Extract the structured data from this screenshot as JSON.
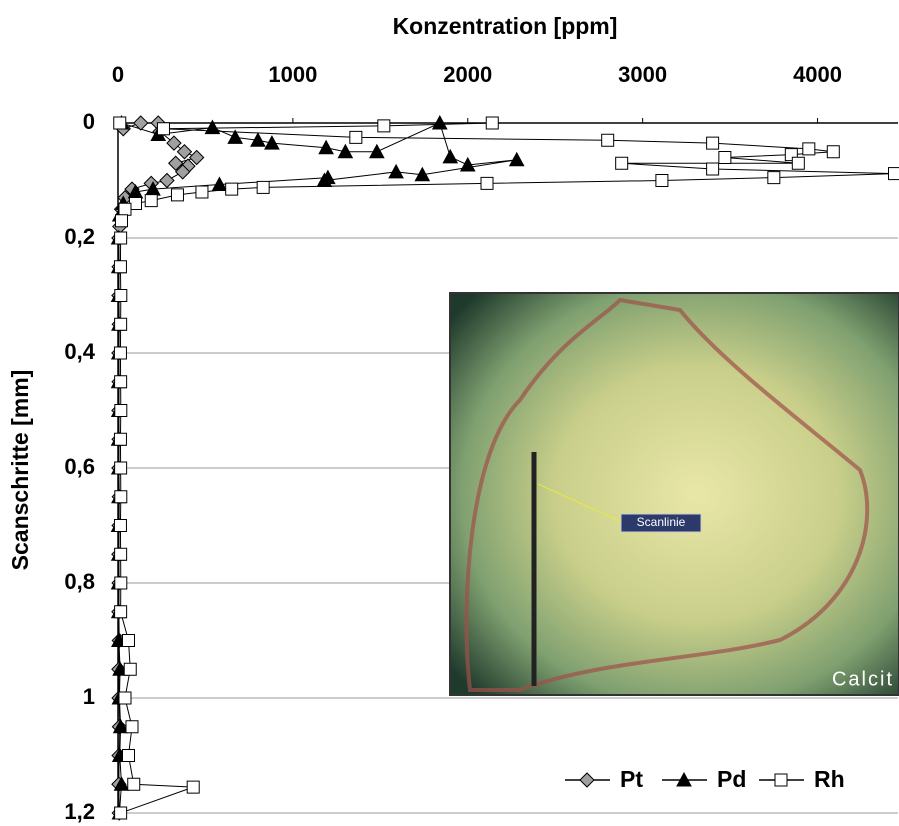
{
  "chart_data": {
    "type": "line",
    "title": "Konzentration [ppm]",
    "y_label": "Scanschritte [mm]",
    "annotations": [
      "Scanlinie",
      "Calcit"
    ],
    "x_axis_position": "top",
    "y_inverted": true,
    "grid": true,
    "legend": "bottom-right",
    "xlim": [
      0,
      4460
    ],
    "xticks": [
      0,
      1000,
      2000,
      3000,
      4000
    ],
    "ylim": [
      0,
      1.2
    ],
    "yticks": [
      0,
      {
        "value": 0.2,
        "label": "0,2"
      },
      {
        "value": 0.4,
        "label": "0,4"
      },
      {
        "value": 0.6,
        "label": "0,6"
      },
      {
        "value": 0.8,
        "label": "0,8"
      },
      1,
      {
        "value": 1.2,
        "label": "1,2"
      }
    ],
    "series": [
      {
        "name": "Pt",
        "marker": "diamond",
        "color": "#a0a0a0",
        "x": [
          30,
          130,
          230,
          240,
          320,
          380,
          450,
          330,
          400,
          370,
          280,
          190,
          80,
          40,
          20,
          10,
          5,
          6,
          5,
          7,
          5,
          6,
          5,
          6,
          5,
          7,
          6,
          5,
          6,
          5,
          7,
          5,
          6,
          8,
          6,
          5,
          7
        ],
        "values": [
          0.01,
          0,
          0,
          0.015,
          0.035,
          0.05,
          0.06,
          0.07,
          0.075,
          0.085,
          0.1,
          0.105,
          0.115,
          0.13,
          0.15,
          0.18,
          0.2,
          0.25,
          0.3,
          0.35,
          0.4,
          0.45,
          0.5,
          0.55,
          0.6,
          0.65,
          0.7,
          0.75,
          0.8,
          0.85,
          0.9,
          0.95,
          1.0,
          1.05,
          1.1,
          1.15,
          1.2
        ]
      },
      {
        "name": "Pd",
        "marker": "triangle",
        "color": "#000000",
        "x": [
          20,
          230,
          540,
          670,
          800,
          880,
          1190,
          1300,
          1480,
          1840,
          1900,
          2000,
          2280,
          1740,
          1590,
          1180,
          1200,
          580,
          200,
          100,
          30,
          10,
          3,
          4,
          3,
          5,
          4,
          3,
          4,
          3,
          4,
          5,
          3,
          4,
          3,
          4,
          5,
          12,
          8,
          15,
          10,
          20,
          8
        ],
        "values": [
          0,
          0.02,
          0.008,
          0.025,
          0.03,
          0.035,
          0.043,
          0.05,
          0.05,
          0,
          0.059,
          0.073,
          0.064,
          0.09,
          0.085,
          0.1,
          0.095,
          0.107,
          0.115,
          0.12,
          0.14,
          0.16,
          0.2,
          0.25,
          0.3,
          0.35,
          0.4,
          0.45,
          0.5,
          0.55,
          0.6,
          0.65,
          0.7,
          0.75,
          0.8,
          0.85,
          0.9,
          0.95,
          1.0,
          1.05,
          1.1,
          1.15,
          1.2
        ]
      },
      {
        "name": "Rh",
        "marker": "square",
        "color": "#ffffff",
        "x": [
          10,
          2140,
          1520,
          260,
          1360,
          2800,
          3400,
          3950,
          4090,
          3850,
          3470,
          3890,
          2880,
          3400,
          4440,
          3750,
          3110,
          2110,
          830,
          650,
          480,
          340,
          190,
          100,
          40,
          20,
          15,
          14,
          16,
          15,
          14,
          15,
          16,
          14,
          15,
          16,
          14,
          15,
          16,
          15,
          60,
          70,
          40,
          80,
          60,
          90,
          430,
          15
        ],
        "values": [
          0,
          0,
          0.005,
          0.01,
          0.025,
          0.03,
          0.035,
          0.045,
          0.05,
          0.055,
          0.06,
          0.07,
          0.07,
          0.08,
          0.088,
          0.095,
          0.1,
          0.105,
          0.112,
          0.115,
          0.12,
          0.125,
          0.135,
          0.14,
          0.15,
          0.17,
          0.2,
          0.25,
          0.3,
          0.35,
          0.4,
          0.45,
          0.5,
          0.55,
          0.6,
          0.65,
          0.7,
          0.75,
          0.8,
          0.85,
          0.9,
          0.95,
          1.0,
          1.05,
          1.1,
          1.15,
          1.155,
          1.2
        ]
      }
    ]
  }
}
